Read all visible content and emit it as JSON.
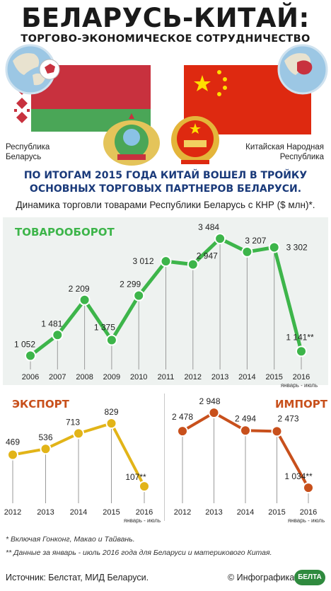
{
  "header": {
    "title": "БЕЛАРУСЬ-КИТАЙ:",
    "subtitle": "ТОРГОВО-ЭКОНОМИЧЕСКОЕ СОТРУДНИЧЕСТВО"
  },
  "countries": {
    "belarus": "Республика\nБеларусь",
    "china": "Китайская Народная\nРеспублика"
  },
  "headline": "ПО ИТОГАМ 2015 ГОДА КИТАЙ ВОШЕЛ В ТРОЙКУ\nОСНОВНЫХ ТОРГОВЫХ ПАРТНЕРОВ БЕЛАРУСИ.",
  "caption": "Динамика торговли товарами Республики Беларусь с КНР ($ млн)*.",
  "chart_data": [
    {
      "type": "line",
      "title": "ТОВАРООБОРОТ",
      "x": [
        "2006",
        "2007",
        "2008",
        "2009",
        "2010",
        "2011",
        "2012",
        "2013",
        "2014",
        "2015",
        "2016"
      ],
      "values": [
        1052,
        1481,
        2209,
        1375,
        2299,
        3012,
        2947,
        3484,
        3207,
        3302,
        1141
      ],
      "labels": [
        "1 052",
        "1 481",
        "2 209",
        "1 375",
        "2 299",
        "3 012",
        "2 947",
        "3 484",
        "3 207",
        "3 302",
        "1 141**"
      ],
      "last_x_note": "январь - июль",
      "color": "#3db54a"
    },
    {
      "type": "line",
      "title": "ЭКСПОРТ",
      "x": [
        "2012",
        "2013",
        "2014",
        "2015",
        "2016"
      ],
      "values": [
        469,
        536,
        713,
        829,
        107
      ],
      "labels": [
        "469",
        "536",
        "713",
        "829",
        "107**"
      ],
      "last_x_note": "январь - июль",
      "color": "#e2b418"
    },
    {
      "type": "line",
      "title": "ИМПОРТ",
      "x": [
        "2012",
        "2013",
        "2014",
        "2015",
        "2016"
      ],
      "values": [
        2478,
        2948,
        2494,
        2473,
        1034
      ],
      "labels": [
        "2 478",
        "2 948",
        "2 494",
        "2 473",
        "1 034**"
      ],
      "last_x_note": "январь - июль",
      "color": "#c8501c"
    }
  ],
  "footnotes": [
    "* Включая Гонконг, Макао и Тайвань.",
    "** Данные за январь - июль 2016 года для Беларуси и материкового Китая."
  ],
  "source": "Источник: Белстат, МИД Беларуси.",
  "credit": "© Инфографика",
  "logo_text": "БЕЛТА",
  "colors": {
    "belarus_red": "#c8313e",
    "belarus_green": "#4aa657",
    "china_red": "#de2910",
    "china_star": "#ffde00",
    "headline_blue": "#1a3a7a"
  }
}
